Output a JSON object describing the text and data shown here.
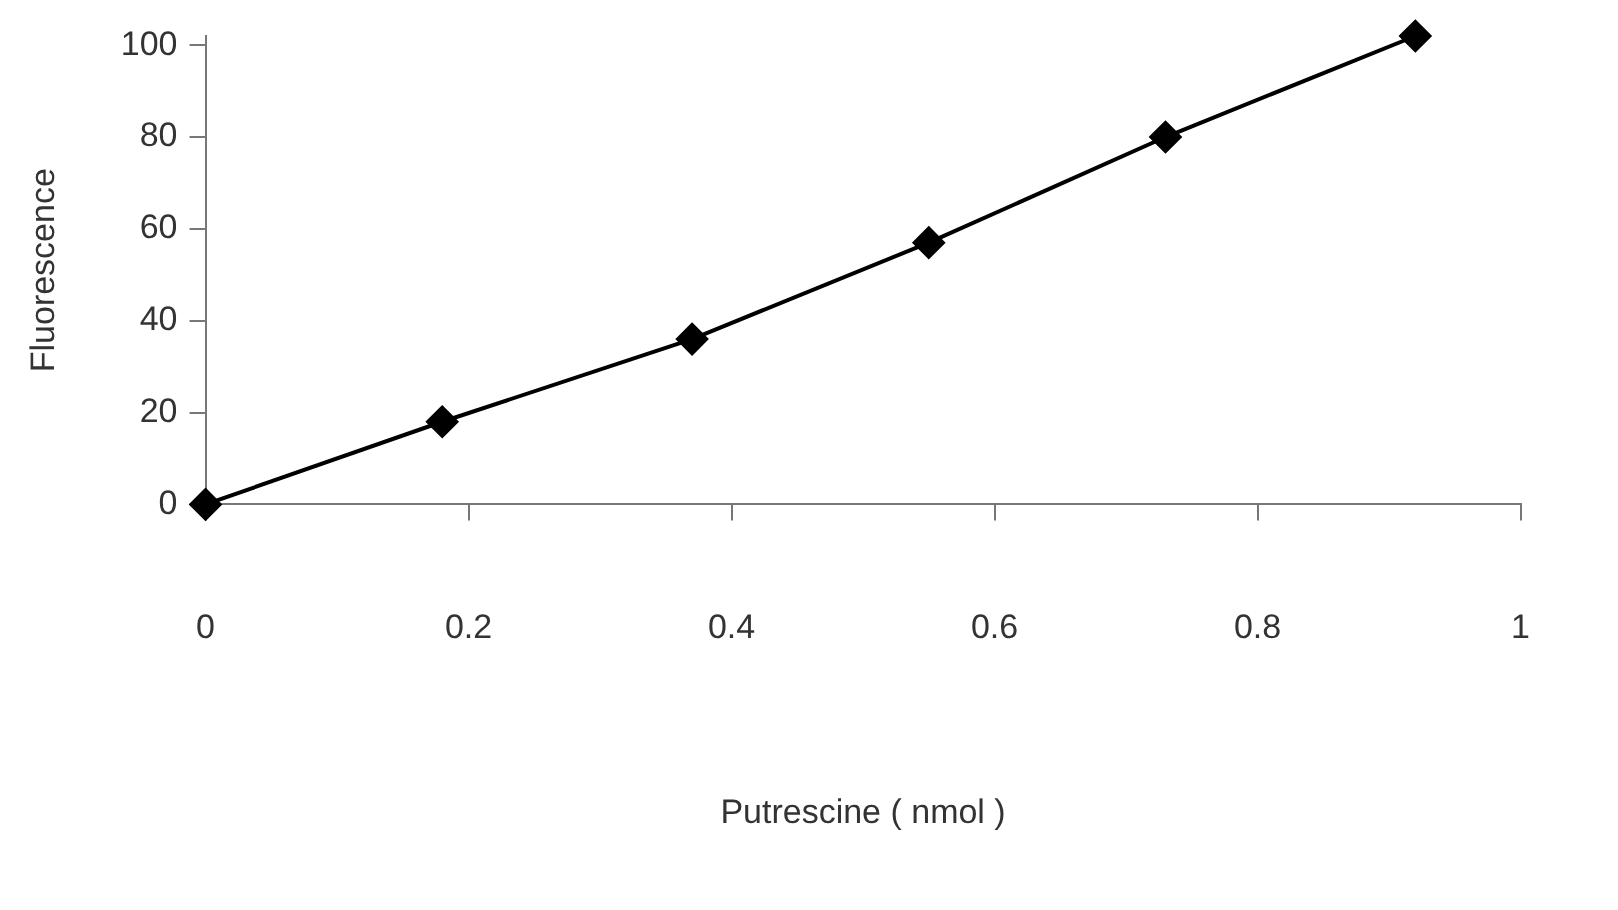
{
  "chart_data": {
    "type": "line",
    "xlabel": "Putrescine ( nmol )",
    "ylabel": "Fluorescence",
    "x": [
      0,
      0.18,
      0.37,
      0.55,
      0.73,
      0.92
    ],
    "series": [
      {
        "color": "#000000",
        "values": [
          0,
          18,
          36,
          57,
          80,
          102
        ]
      }
    ],
    "xlim": [
      0,
      1
    ],
    "xticks": [
      0,
      0.2,
      0.4,
      0.6,
      0.8,
      1
    ],
    "ylim": [
      0,
      102
    ],
    "yticks": [
      0,
      20,
      40,
      60,
      80,
      100
    ],
    "marker": "diamond",
    "line_style": "solid",
    "grid": false,
    "legend": false
  }
}
